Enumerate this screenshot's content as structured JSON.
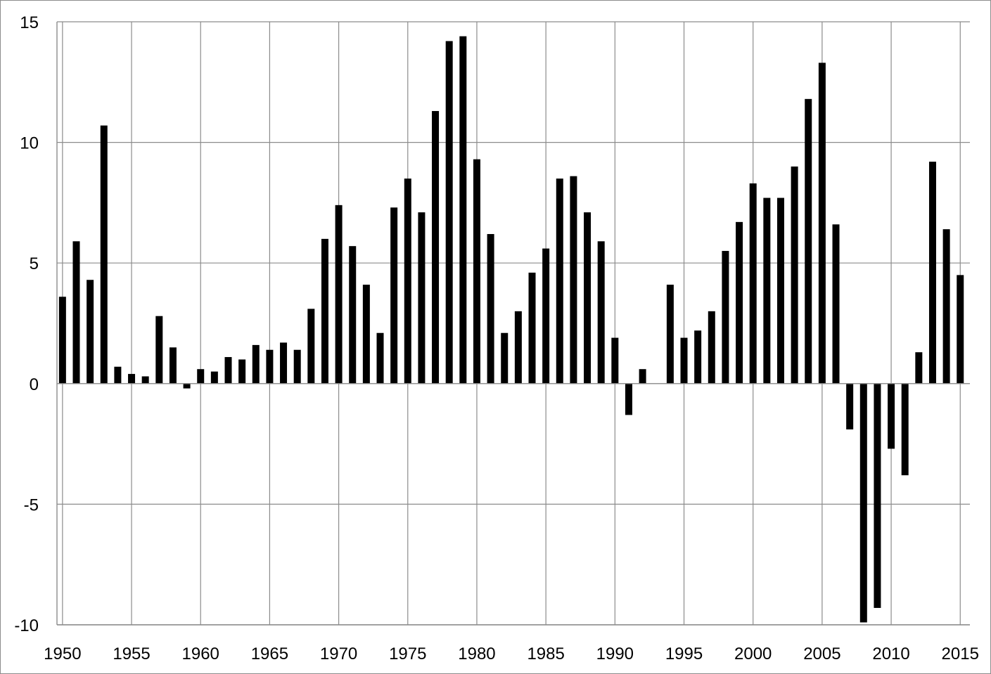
{
  "chart_data": {
    "type": "bar",
    "title": "",
    "xlabel": "",
    "ylabel": "",
    "x": [
      1950,
      1951,
      1952,
      1953,
      1954,
      1955,
      1956,
      1957,
      1958,
      1959,
      1960,
      1961,
      1962,
      1963,
      1964,
      1965,
      1966,
      1967,
      1968,
      1969,
      1970,
      1971,
      1972,
      1973,
      1974,
      1975,
      1976,
      1977,
      1978,
      1979,
      1980,
      1981,
      1982,
      1983,
      1984,
      1985,
      1986,
      1987,
      1988,
      1989,
      1990,
      1991,
      1992,
      1993,
      1994,
      1995,
      1996,
      1997,
      1998,
      1999,
      2000,
      2001,
      2002,
      2003,
      2004,
      2005,
      2006,
      2007,
      2008,
      2009,
      2010,
      2011,
      2012,
      2013,
      2014,
      2015
    ],
    "values": [
      3.6,
      5.9,
      4.3,
      10.7,
      0.7,
      0.4,
      0.3,
      2.8,
      1.5,
      -0.2,
      0.6,
      0.5,
      1.1,
      1.0,
      1.6,
      1.4,
      1.7,
      1.4,
      3.1,
      6.0,
      7.4,
      5.7,
      4.1,
      2.1,
      7.3,
      8.5,
      7.1,
      11.3,
      14.2,
      14.4,
      9.3,
      6.2,
      2.1,
      3.0,
      4.6,
      5.6,
      8.5,
      8.6,
      7.1,
      5.9,
      1.9,
      -1.3,
      0.6,
      0.0,
      4.1,
      1.9,
      2.2,
      3.0,
      5.5,
      6.7,
      8.3,
      7.7,
      7.7,
      9.0,
      11.8,
      13.3,
      6.6,
      -1.9,
      -9.9,
      -9.3,
      -2.7,
      -3.8,
      1.3,
      9.2,
      6.4,
      4.5
    ],
    "xticks": [
      "1950",
      "1955",
      "1960",
      "1965",
      "1970",
      "1975",
      "1980",
      "1985",
      "1990",
      "1995",
      "2000",
      "2005",
      "2010",
      "2015"
    ],
    "yticks": [
      "-10",
      "-5",
      "0",
      "5",
      "10",
      "15"
    ],
    "xlim": [
      1949.6,
      2015.7
    ],
    "ylim": [
      -10,
      15
    ],
    "grid": true,
    "bar_color": "#000000",
    "grid_color": "#8c8c8c"
  }
}
